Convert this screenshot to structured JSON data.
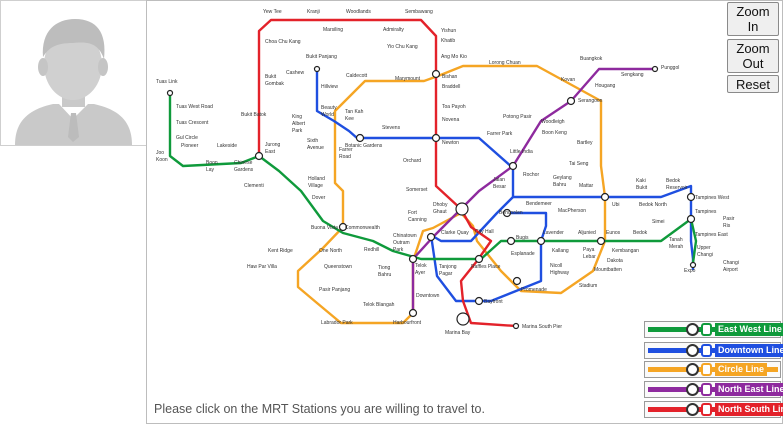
{
  "zoom_in_label_1": "Zoom",
  "zoom_in_label_2": "In",
  "zoom_out_label_1": "Zoom",
  "zoom_out_label_2": "Out",
  "reset_label": "Reset",
  "prompt": "Please click on the MRT Stations you are willing to travel to.",
  "legend": [
    {
      "label": "East West Line",
      "color": "#0f9a3b"
    },
    {
      "label": "Downtown Line",
      "color": "#1f4fe0"
    },
    {
      "label": "Circle Line",
      "color": "#f5a524"
    },
    {
      "label": "North East Line",
      "color": "#8e2a9e"
    },
    {
      "label": "North South Line",
      "color": "#e3222a"
    }
  ],
  "stations": {
    "ns_north": [
      "Yew Tee",
      "Kranji",
      "Marsiling",
      "Woodlands",
      "Admiralty",
      "Sembawang",
      "Yishun",
      "Khatib",
      "Yio Chu Kang",
      "Ang Mo Kio"
    ],
    "ns_west": [
      "Choa Chu Kang",
      "Bukit Gombak",
      "Bukit Batok",
      "Jurong East"
    ],
    "ns_central": [
      "Bishan",
      "Braddell",
      "Toa Payoh",
      "Novena",
      "Newton",
      "Orchard",
      "Somerset",
      "Dhoby Ghaut",
      "City Hall",
      "Raffles Place",
      "Marina Bay",
      "Marina South Pier"
    ],
    "ew_west": [
      "Tuas Link",
      "Tuas West Road",
      "Tuas Crescent",
      "Gul Circle",
      "Joo Koon",
      "Pioneer",
      "Boon Lay",
      "Lakeside",
      "Chinese Garden",
      "Clementi",
      "Dover",
      "Buona Vista",
      "Commonwealth",
      "Queenstown",
      "Redhill",
      "Tiong Bahru",
      "Outram Park",
      "Tanjong Pagar"
    ],
    "ew_east": [
      "Bugis",
      "Lavender",
      "Kallang",
      "Aljunied",
      "Paya Lebar",
      "Eunos",
      "Kembangan",
      "Bedok",
      "Tanah Merah",
      "Simei",
      "Tampines",
      "Pasir Ris",
      "Expo",
      "Changi Airport"
    ],
    "dt": [
      "Bukit Panjang",
      "Cashew",
      "Hillview",
      "Beauty World",
      "King Albert Park",
      "Sixth Avenue",
      "Tan Kah Kee",
      "Botanic Gardens",
      "Stevens",
      "Newton",
      "Little India",
      "Rochor",
      "Jalan Besar",
      "Bendemeer",
      "Geylang Bahru",
      "Mattar",
      "MacPherson",
      "Ubi",
      "Kaki Bukit",
      "Bedok North",
      "Bedok Reservoir",
      "Tampines West",
      "Tampines East",
      "Upper Changi",
      "Fort Canning",
      "Bencoolen",
      "Bayfront",
      "Downtown",
      "Telok Ayer",
      "Chinatown",
      "Promenade"
    ],
    "cc": [
      "Marymount",
      "Caldecott",
      "Bishan",
      "Lorong Chuan",
      "Serangoon",
      "Bartley",
      "Tai Seng",
      "Dakota",
      "Mountbatten",
      "Stadium",
      "Nicoll Highway",
      "Esplanade",
      "Farrer Road",
      "Holland Village",
      "one-north",
      "Kent Ridge",
      "Haw Par Villa",
      "Pasir Panjang",
      "Labrador Park",
      "Telok Blangah",
      "HarbourFront",
      "Bras Basah"
    ],
    "ne": [
      "Punggol",
      "Sengkang",
      "Buangkok",
      "Hougang",
      "Kovan",
      "Serangoon",
      "Woodleigh",
      "Potong Pasir",
      "Boon Keng",
      "Farrer Park",
      "Little India",
      "Dhoby Ghaut",
      "Clarke Quay",
      "Chinatown",
      "Outram Park",
      "HarbourFront"
    ]
  }
}
